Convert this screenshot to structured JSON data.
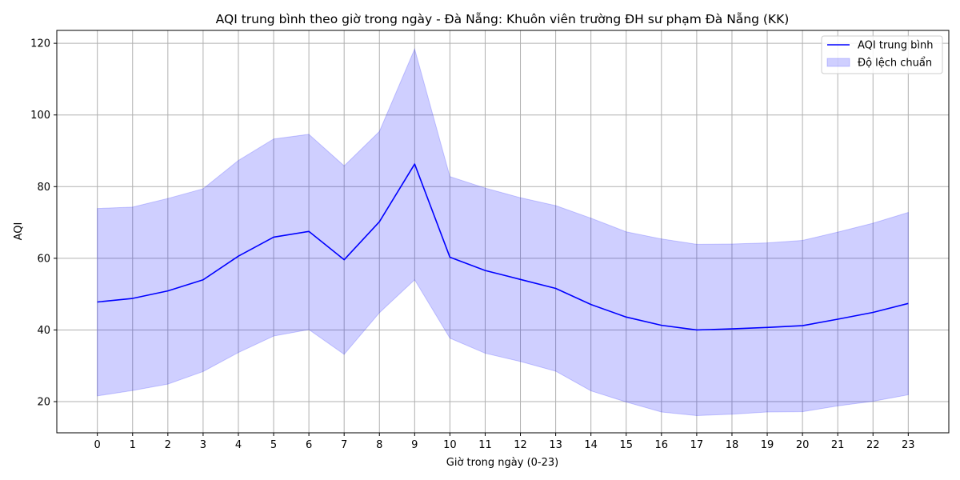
{
  "chart_data": {
    "type": "line",
    "title": "AQI trung bình theo giờ trong ngày - Đà Nẵng: Khuôn viên trường ĐH sư phạm Đà Nẵng (KK)",
    "xlabel": "Giờ trong ngày (0-23)",
    "ylabel": "AQI",
    "x": [
      0,
      1,
      2,
      3,
      4,
      5,
      6,
      7,
      8,
      9,
      10,
      11,
      12,
      13,
      14,
      15,
      16,
      17,
      18,
      19,
      20,
      21,
      22,
      23
    ],
    "xlim": [
      -1.15,
      24.15
    ],
    "ylim": [
      11.3,
      123.6
    ],
    "yticks": [
      20,
      40,
      60,
      80,
      100,
      120
    ],
    "grid": true,
    "legend_position": "top-right",
    "series": [
      {
        "name": "AQI trung bình",
        "kind": "line",
        "color": "#0000ff",
        "values": [
          47.8,
          48.8,
          50.9,
          54.0,
          60.6,
          65.9,
          67.5,
          59.6,
          70.2,
          86.3,
          60.3,
          56.6,
          54.1,
          51.6,
          47.1,
          43.6,
          41.3,
          40.0,
          40.3,
          40.7,
          41.2,
          43.0,
          44.9,
          47.4
        ]
      },
      {
        "name": "Độ lệch chuẩn",
        "kind": "band",
        "color": "#0000ff",
        "lower": [
          21.6,
          23.1,
          24.9,
          28.4,
          33.7,
          38.3,
          40.1,
          33.2,
          44.8,
          54.0,
          37.7,
          33.5,
          31.2,
          28.5,
          23.0,
          19.9,
          17.1,
          16.1,
          16.5,
          17.1,
          17.2,
          18.8,
          20.1,
          21.9
        ],
        "upper": [
          73.9,
          74.3,
          76.7,
          79.4,
          87.3,
          93.3,
          94.6,
          85.8,
          95.4,
          118.4,
          82.8,
          79.6,
          76.9,
          74.7,
          71.2,
          67.4,
          65.4,
          63.9,
          64.0,
          64.3,
          65.0,
          67.3,
          69.8,
          72.8
        ]
      }
    ]
  }
}
